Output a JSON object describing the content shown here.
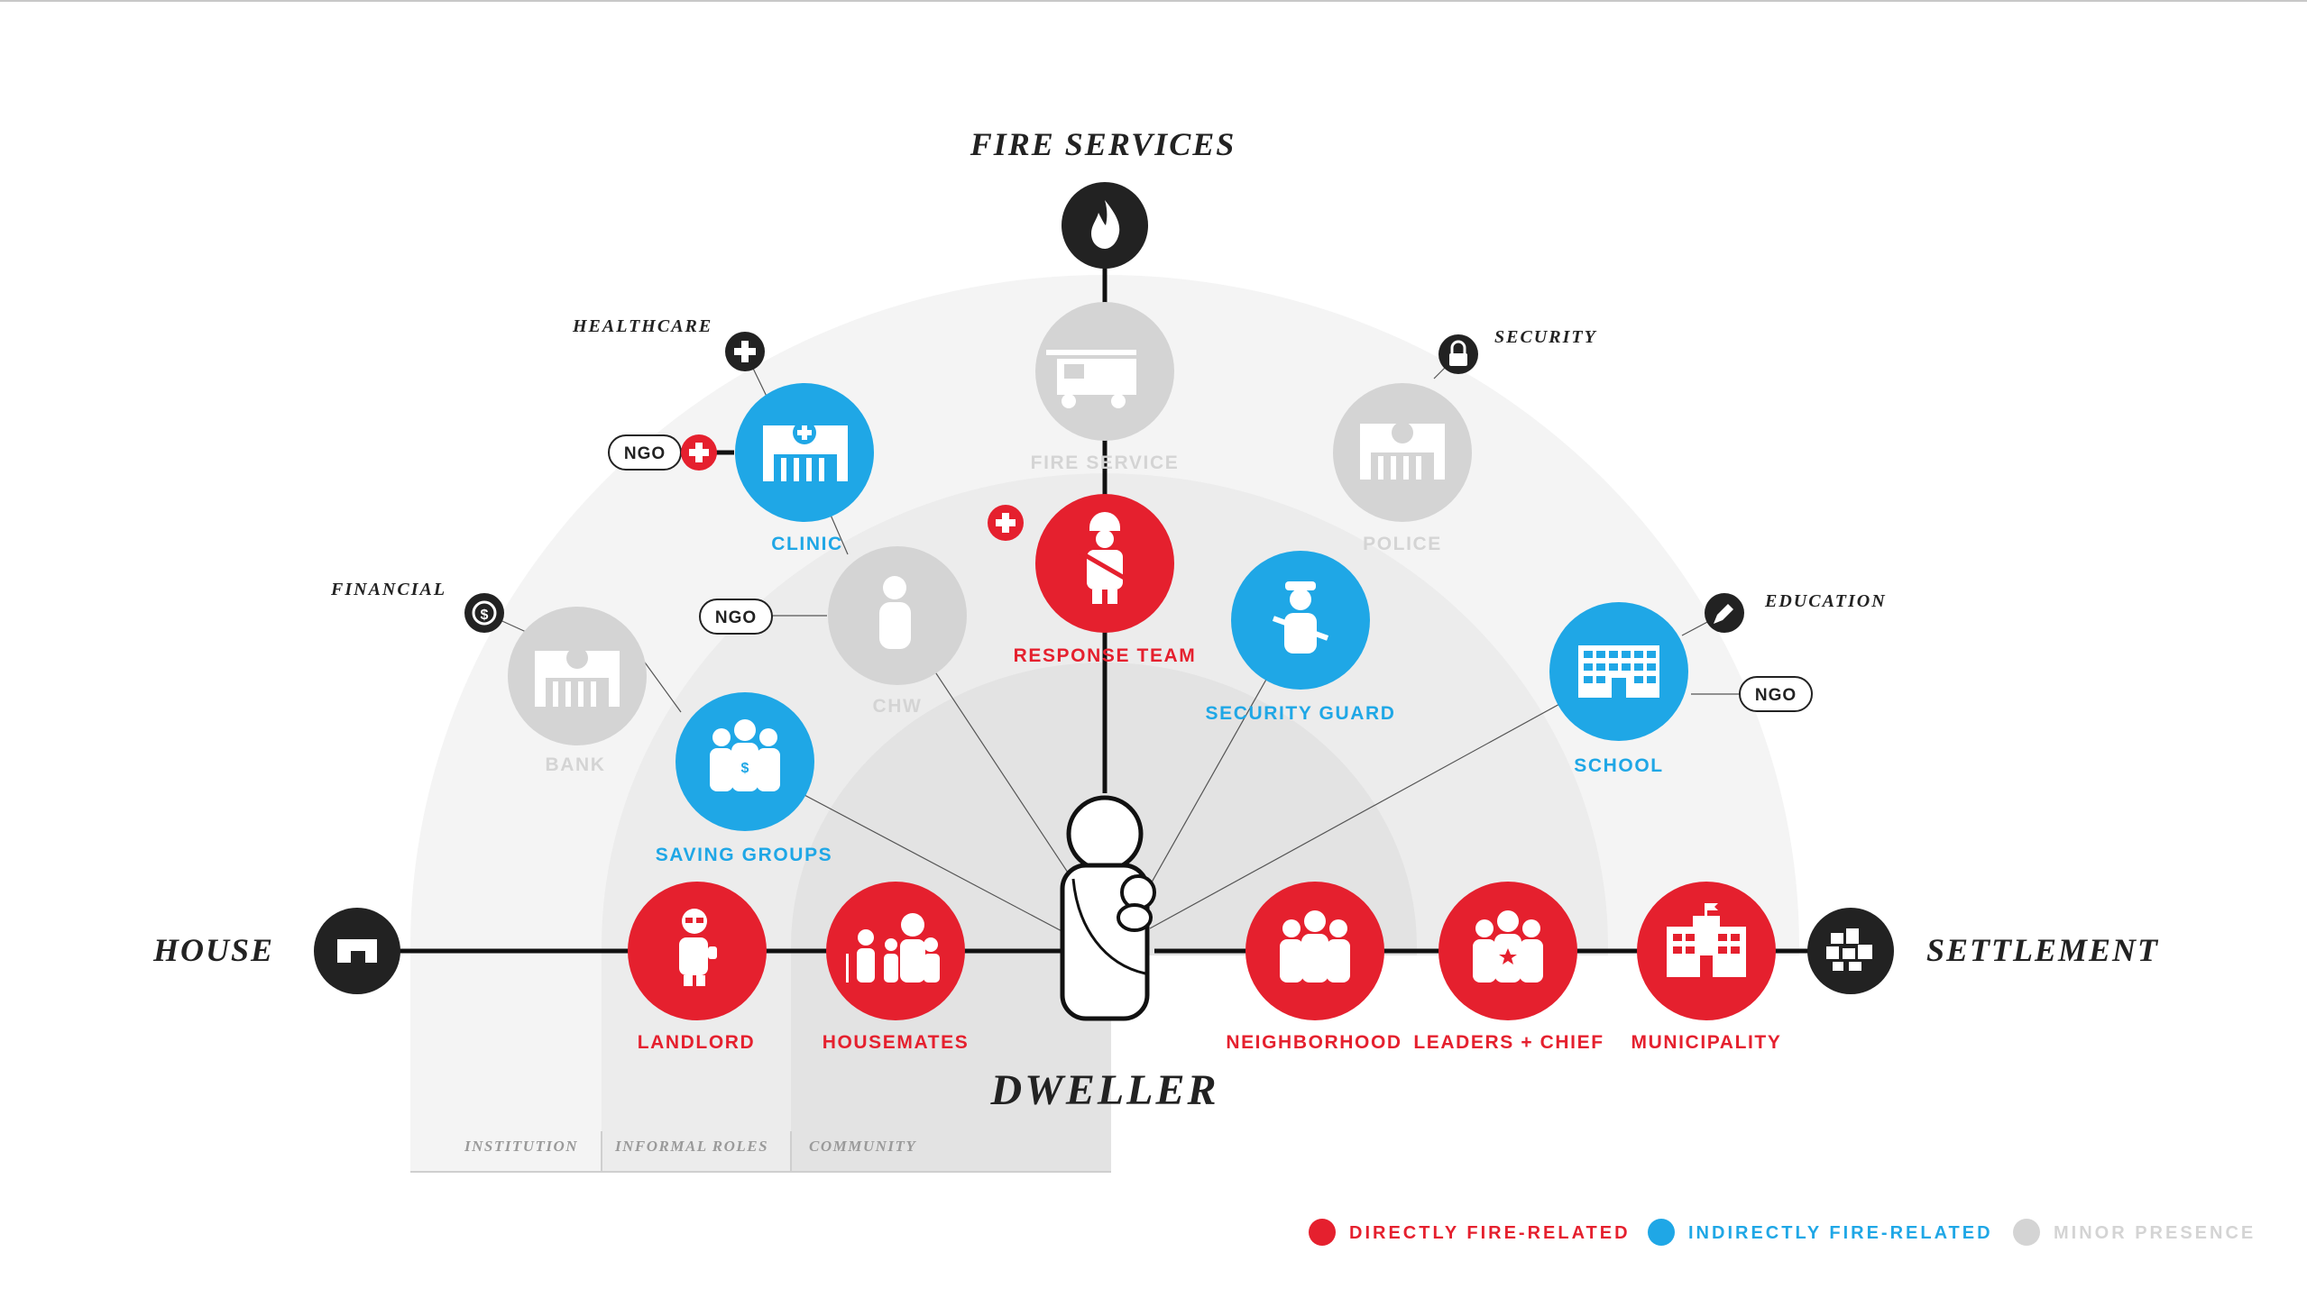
{
  "titles": {
    "top": "FIRE SERVICES",
    "left": "HOUSE",
    "right": "SETTLEMENT",
    "center": "DWELLER"
  },
  "categories": {
    "healthcare": "HEALTHCARE",
    "financial": "FINANCIAL",
    "security": "SECURITY",
    "education": "EDUCATION"
  },
  "bands": {
    "institution": "INSTITUTION",
    "informal_roles": "INFORMAL ROLES",
    "community": "COMMUNITY"
  },
  "nodes": {
    "fire_service": "FIRE SERVICE",
    "clinic": "CLINIC",
    "police": "POLICE",
    "chw": "CHW",
    "bank": "BANK",
    "response_team": "RESPONSE TEAM",
    "security_guard": "SECURITY GUARD",
    "saving_groups": "SAVING GROUPS",
    "school": "SCHOOL",
    "landlord": "LANDLORD",
    "housemates": "HOUSEMATES",
    "neighborhood": "NEIGHBORHOOD",
    "leaders_chief": "LEADERS + CHIEF",
    "municipality": "MUNICIPALITY"
  },
  "tags": {
    "ngo_clinic": "NGO",
    "ngo_chw": "NGO",
    "ngo_school": "NGO"
  },
  "legend": {
    "direct": "DIRECTLY FIRE-RELATED",
    "indirect": "INDIRECTLY FIRE-RELATED",
    "minor": "MINOR PRESENCE"
  },
  "colors": {
    "direct": "#e5202e",
    "indirect": "#1fa7e6",
    "minor": "#d4d4d4",
    "anchor": "#222222"
  },
  "icons": {
    "fire": "fire-icon",
    "house": "house-icon",
    "settlement": "settlement-icon",
    "health": "plus-icon",
    "financial": "dollar-coin-icon",
    "security": "lock-icon",
    "education": "pencil-icon"
  }
}
